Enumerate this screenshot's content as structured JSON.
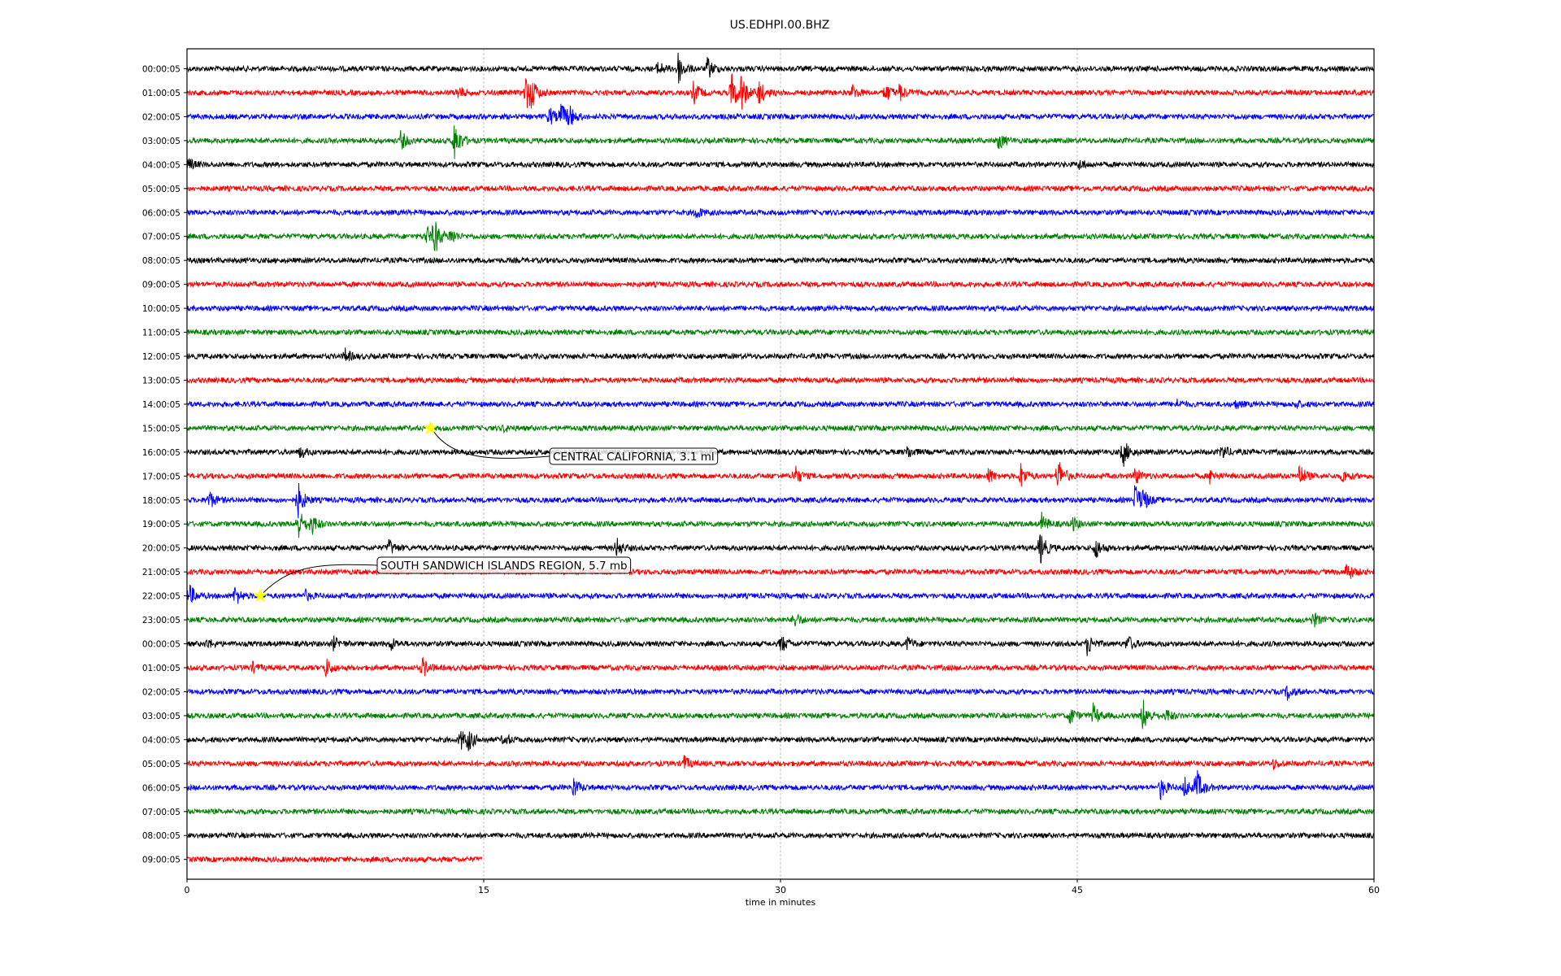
{
  "chart_data": {
    "type": "line",
    "title": "US.EDHPI.00.BHZ",
    "xlabel": "time in minutes",
    "ylabel": "",
    "xlim": [
      0,
      60
    ],
    "xticks": [
      "0",
      "15",
      "30",
      "45",
      "60"
    ],
    "xtick_values": [
      0,
      15,
      30,
      45,
      60
    ],
    "grid": "vertical dashed at 15, 30, 45",
    "colors": [
      "#000000",
      "#ff0000",
      "#0000ff",
      "#008000"
    ],
    "rows": [
      {
        "label": "00:00:05",
        "events": [
          [
            23.8,
            10
          ],
          [
            24.8,
            22
          ],
          [
            26.3,
            14
          ]
        ]
      },
      {
        "label": "01:00:05",
        "events": [
          [
            13.7,
            8
          ],
          [
            17.1,
            24
          ],
          [
            17.4,
            14
          ],
          [
            25.6,
            14
          ],
          [
            27.5,
            28
          ],
          [
            28.0,
            22
          ],
          [
            28.9,
            16
          ],
          [
            33.6,
            10
          ],
          [
            35.3,
            12
          ],
          [
            36.0,
            10
          ]
        ]
      },
      {
        "label": "02:00:05",
        "events": [
          [
            18.3,
            12
          ],
          [
            18.9,
            16
          ],
          [
            19.3,
            12
          ]
        ]
      },
      {
        "label": "03:00:05",
        "events": [
          [
            10.8,
            12
          ],
          [
            13.5,
            28
          ],
          [
            41.0,
            12
          ]
        ]
      },
      {
        "label": "04:00:05",
        "events": [
          [
            0.05,
            8
          ],
          [
            45.1,
            6
          ]
        ]
      },
      {
        "label": "05:00:05",
        "events": []
      },
      {
        "label": "06:00:05",
        "events": [
          [
            25.7,
            8
          ]
        ]
      },
      {
        "label": "07:00:05",
        "events": [
          [
            12.1,
            12
          ],
          [
            12.5,
            22
          ],
          [
            13.3,
            10
          ]
        ]
      },
      {
        "label": "08:00:05",
        "events": []
      },
      {
        "label": "09:00:05",
        "events": []
      },
      {
        "label": "10:00:05",
        "events": []
      },
      {
        "label": "11:00:05",
        "events": []
      },
      {
        "label": "12:00:05",
        "events": [
          [
            8.0,
            8
          ]
        ]
      },
      {
        "label": "13:00:05",
        "events": []
      },
      {
        "label": "14:00:05",
        "events": [
          [
            50,
            5
          ],
          [
            53,
            5
          ],
          [
            56,
            5
          ]
        ]
      },
      {
        "label": "15:00:05",
        "events": [
          [
            16,
            4
          ]
        ]
      },
      {
        "label": "16:00:05",
        "events": [
          [
            5.7,
            8
          ],
          [
            36.4,
            8
          ],
          [
            47.3,
            18
          ],
          [
            52.3,
            10
          ]
        ]
      },
      {
        "label": "17:00:05",
        "events": [
          [
            30.7,
            14
          ],
          [
            40.5,
            10
          ],
          [
            42.1,
            18
          ],
          [
            44.0,
            26
          ],
          [
            47.9,
            12
          ],
          [
            51.7,
            8
          ],
          [
            56.2,
            16
          ],
          [
            58.4,
            8
          ]
        ]
      },
      {
        "label": "18:00:05",
        "events": [
          [
            1.1,
            12
          ],
          [
            5.6,
            22
          ],
          [
            47.9,
            22
          ],
          [
            48.3,
            12
          ]
        ]
      },
      {
        "label": "19:00:05",
        "events": [
          [
            5.6,
            22
          ],
          [
            6.3,
            12
          ],
          [
            43.2,
            12
          ],
          [
            44.7,
            10
          ]
        ]
      },
      {
        "label": "20:00:05",
        "events": [
          [
            10.2,
            10
          ],
          [
            21.7,
            12
          ],
          [
            43.1,
            22
          ],
          [
            45.9,
            14
          ]
        ]
      },
      {
        "label": "21:00:05",
        "events": [
          [
            58.6,
            14
          ]
        ]
      },
      {
        "label": "22:00:05",
        "events": [
          [
            0.1,
            14
          ],
          [
            2.4,
            14
          ],
          [
            5.9,
            8
          ]
        ]
      },
      {
        "label": "23:00:05",
        "events": [
          [
            30.7,
            10
          ],
          [
            56.9,
            10
          ]
        ]
      },
      {
        "label": "00:00:05",
        "events": [
          [
            1.0,
            6
          ],
          [
            7.4,
            8
          ],
          [
            10.3,
            8
          ],
          [
            30.0,
            12
          ],
          [
            36.4,
            8
          ],
          [
            45.5,
            14
          ],
          [
            47.5,
            12
          ]
        ]
      },
      {
        "label": "01:00:05",
        "events": [
          [
            3.3,
            6
          ],
          [
            7.0,
            12
          ],
          [
            11.9,
            12
          ]
        ]
      },
      {
        "label": "02:00:05",
        "events": [
          [
            55.6,
            10
          ]
        ]
      },
      {
        "label": "03:00:05",
        "events": [
          [
            44.6,
            12
          ],
          [
            45.8,
            14
          ],
          [
            48.3,
            22
          ],
          [
            49.5,
            8
          ]
        ]
      },
      {
        "label": "04:00:05",
        "events": [
          [
            13.8,
            14
          ],
          [
            14.2,
            12
          ],
          [
            16.0,
            8
          ]
        ]
      },
      {
        "label": "05:00:05",
        "events": [
          [
            25.1,
            10
          ],
          [
            54.9,
            6
          ]
        ]
      },
      {
        "label": "06:00:05",
        "events": [
          [
            19.5,
            14
          ],
          [
            49.2,
            14
          ],
          [
            50.4,
            14
          ],
          [
            51.0,
            24
          ]
        ]
      },
      {
        "label": "07:00:05",
        "events": []
      },
      {
        "label": "08:00:05",
        "events": []
      },
      {
        "label": "09:00:05",
        "events": [],
        "end": 14.9
      }
    ],
    "annotations": [
      {
        "text": "CENTRAL CALIFORNIA, 3.1 ml",
        "row": 15,
        "minute": 12.3
      },
      {
        "text": "SOUTH SANDWICH ISLANDS REGION, 5.7 mb",
        "row": 22,
        "minute": 3.7
      }
    ]
  }
}
